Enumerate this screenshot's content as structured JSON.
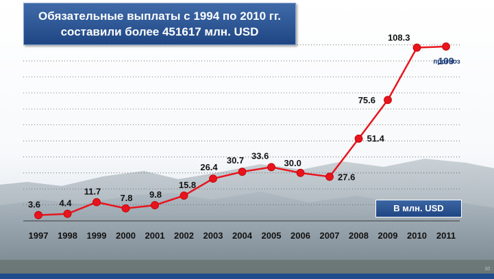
{
  "header": {
    "title_line1": "Обязательные выплаты с 1994 по 2010 гг.",
    "title_line2": "составили более 451617 млн. USD"
  },
  "units_label": "В млн. USD",
  "forecast_note": "прогноз",
  "page_number": "10",
  "colors": {
    "line": "#e8141d",
    "marker": "#e8141d",
    "title_bg": "#2a5292",
    "forecast_value": "#1f3f7a"
  },
  "chart_data": {
    "type": "line",
    "categories": [
      "1997",
      "1998",
      "1999",
      "2000",
      "2001",
      "2002",
      "2003",
      "2004",
      "2005",
      "2006",
      "2007",
      "2008",
      "2009",
      "2010",
      "2011"
    ],
    "values": [
      3.6,
      4.4,
      11.7,
      7.8,
      9.8,
      15.8,
      26.4,
      30.7,
      33.6,
      30.0,
      27.6,
      51.4,
      75.6,
      108.3,
      109
    ],
    "value_labels": [
      "3.6",
      "4.4",
      "11.7",
      "7.8",
      "9.8",
      "15.8",
      "26.4",
      "30.7",
      "33.6",
      "30.0",
      "27.6",
      "51.4",
      "75.6",
      "108.3",
      "109"
    ],
    "forecast_index": 14,
    "title": "Обязательные выплаты с 1994 по 2010 гг. составили более 451617 млн. USD",
    "ylabel": "В млн. USD",
    "ylim": [
      0,
      115
    ],
    "grid": true
  }
}
